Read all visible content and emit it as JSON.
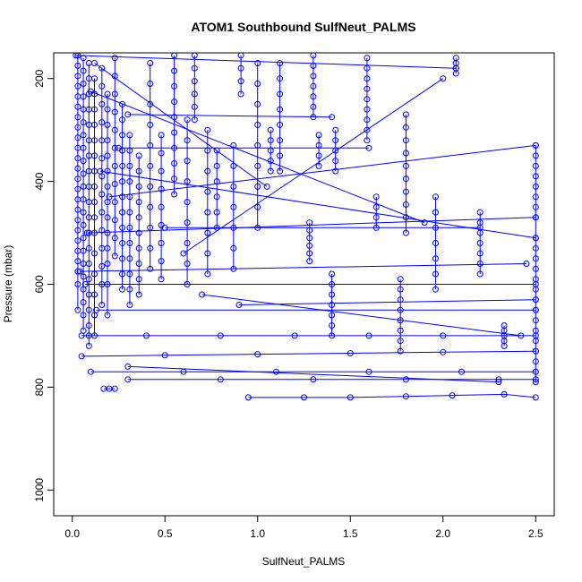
{
  "chart_data": {
    "type": "scatter",
    "title": "ATOM1 Southbound SulfNeut_PALMS",
    "xlabel": "SulfNeut_PALMS",
    "ylabel": "Pressure (mbar)",
    "xlim": [
      -0.1,
      2.6
    ],
    "ylim": [
      1050,
      150
    ],
    "y_inverted": true,
    "x_ticks": [
      0.0,
      0.5,
      1.0,
      1.5,
      2.0,
      2.5
    ],
    "x_tick_labels": [
      "0.0",
      "0.5",
      "1.0",
      "1.5",
      "2.0",
      "2.5"
    ],
    "y_ticks": [
      200,
      400,
      600,
      800,
      1000
    ],
    "y_tick_labels": [
      "200",
      "400",
      "600",
      "800",
      "1000"
    ],
    "color": "#0000ff",
    "marker": "open-circle",
    "connect_points": true,
    "legend": "none",
    "grid": false,
    "series": [
      {
        "x": [
          0.03,
          0.03,
          0.03,
          0.03,
          0.03,
          0.03,
          0.03,
          0.03,
          0.03,
          0.03,
          0.03,
          0.03,
          0.03,
          0.03,
          0.03,
          0.03,
          0.03,
          0.03,
          0.03,
          0.03,
          0.03,
          0.03,
          0.03,
          0.03
        ],
        "y": [
          155,
          175,
          195,
          215,
          235,
          255,
          275,
          295,
          315,
          335,
          355,
          375,
          395,
          415,
          435,
          455,
          475,
          495,
          515,
          535,
          555,
          575,
          600,
          650
        ]
      },
      {
        "x": [
          0.06,
          0.06,
          0.06,
          0.06,
          0.06,
          0.06,
          0.06,
          0.06,
          0.06,
          0.06,
          0.06,
          0.06,
          0.06,
          0.06,
          0.06,
          0.06,
          0.06,
          0.06,
          0.06,
          0.06,
          0.06,
          0.06
        ],
        "y": [
          160,
          185,
          210,
          235,
          260,
          285,
          310,
          335,
          360,
          385,
          410,
          435,
          460,
          485,
          510,
          535,
          560,
          585,
          610,
          635,
          660,
          690
        ]
      },
      {
        "x": [
          0.09,
          0.09,
          0.09,
          0.09,
          0.09,
          0.09,
          0.09,
          0.09,
          0.09,
          0.09,
          0.09,
          0.09,
          0.09,
          0.09,
          0.09,
          0.09,
          0.09,
          0.09,
          0.09,
          0.09
        ],
        "y": [
          170,
          200,
          230,
          260,
          290,
          320,
          350,
          380,
          410,
          440,
          470,
          500,
          530,
          560,
          590,
          620,
          650,
          680,
          700,
          720
        ]
      },
      {
        "x": [
          0.12,
          0.12,
          0.12,
          0.12,
          0.12,
          0.12,
          0.12,
          0.12,
          0.12,
          0.12,
          0.12,
          0.12,
          0.12,
          0.12,
          0.12,
          0.12
        ],
        "y": [
          200,
          230,
          260,
          290,
          320,
          350,
          380,
          410,
          440,
          470,
          500,
          540,
          580,
          620,
          660,
          700
        ]
      },
      {
        "x": [
          0.16,
          0.16,
          0.16,
          0.16,
          0.16,
          0.16,
          0.16,
          0.16,
          0.16,
          0.16,
          0.16,
          0.16,
          0.16,
          0.16
        ],
        "y": [
          180,
          215,
          250,
          285,
          320,
          355,
          390,
          425,
          460,
          495,
          530,
          565,
          600,
          640
        ]
      },
      {
        "x": [
          0.19,
          0.19,
          0.19,
          0.19,
          0.19,
          0.19,
          0.19,
          0.19,
          0.19,
          0.19,
          0.19,
          0.19,
          0.19,
          0.19
        ],
        "y": [
          230,
          260,
          290,
          320,
          350,
          380,
          410,
          440,
          470,
          500,
          530,
          560,
          600,
          660
        ]
      },
      {
        "x": [
          0.23,
          0.23,
          0.23,
          0.23,
          0.23,
          0.23,
          0.23,
          0.23,
          0.23,
          0.23,
          0.23,
          0.23
        ],
        "y": [
          160,
          195,
          230,
          265,
          300,
          335,
          370,
          405,
          440,
          475,
          510,
          545
        ]
      },
      {
        "x": [
          0.27,
          0.27,
          0.27,
          0.27,
          0.27,
          0.27,
          0.27,
          0.27,
          0.27,
          0.27,
          0.27,
          0.27,
          0.27
        ],
        "y": [
          250,
          280,
          310,
          340,
          370,
          400,
          430,
          460,
          490,
          520,
          550,
          580,
          610
        ]
      },
      {
        "x": [
          0.31,
          0.31,
          0.31,
          0.31,
          0.31,
          0.31,
          0.31,
          0.31,
          0.31,
          0.31,
          0.31,
          0.31
        ],
        "y": [
          310,
          340,
          370,
          400,
          430,
          460,
          490,
          520,
          550,
          580,
          610,
          640
        ]
      },
      {
        "x": [
          0.36,
          0.36,
          0.36,
          0.36,
          0.36,
          0.36,
          0.36,
          0.36,
          0.36,
          0.36
        ],
        "y": [
          350,
          380,
          410,
          440,
          470,
          500,
          530,
          560,
          590,
          620
        ]
      },
      {
        "x": [
          0.42,
          0.42,
          0.42,
          0.42,
          0.42,
          0.42,
          0.42,
          0.42,
          0.42,
          0.42,
          0.42
        ],
        "y": [
          170,
          210,
          250,
          290,
          330,
          370,
          410,
          450,
          490,
          530,
          570
        ]
      },
      {
        "x": [
          0.48,
          0.48,
          0.48,
          0.48,
          0.48,
          0.48,
          0.48,
          0.48,
          0.48
        ],
        "y": [
          310,
          345,
          380,
          415,
          450,
          485,
          520,
          555,
          590
        ]
      },
      {
        "x": [
          0.55,
          0.55,
          0.55,
          0.55,
          0.55,
          0.55,
          0.55,
          0.55,
          0.55,
          0.55
        ],
        "y": [
          155,
          185,
          215,
          245,
          275,
          305,
          335,
          365,
          395,
          425
        ]
      },
      {
        "x": [
          0.62,
          0.62,
          0.62,
          0.62,
          0.62,
          0.62,
          0.62,
          0.62,
          0.62
        ],
        "y": [
          280,
          320,
          360,
          400,
          440,
          480,
          520,
          560,
          600
        ]
      },
      {
        "x": [
          0.66,
          0.66,
          0.66,
          0.66,
          0.66,
          0.66
        ],
        "y": [
          155,
          180,
          205,
          230,
          255,
          280
        ]
      },
      {
        "x": [
          0.73,
          0.73,
          0.73,
          0.73,
          0.73,
          0.73,
          0.73,
          0.73
        ],
        "y": [
          300,
          340,
          380,
          420,
          460,
          500,
          540,
          580
        ]
      },
      {
        "x": [
          0.78,
          0.78,
          0.78,
          0.78,
          0.78,
          0.78
        ],
        "y": [
          340,
          370,
          400,
          430,
          460,
          490
        ]
      },
      {
        "x": [
          0.87,
          0.87,
          0.87,
          0.87,
          0.87,
          0.87,
          0.87
        ],
        "y": [
          330,
          370,
          410,
          450,
          490,
          530,
          570
        ]
      },
      {
        "x": [
          0.91,
          0.91,
          0.91,
          0.91
        ],
        "y": [
          155,
          180,
          205,
          230
        ]
      },
      {
        "x": [
          1.0,
          1.0,
          1.0,
          1.0,
          1.0,
          1.0,
          1.0,
          1.0,
          1.0
        ],
        "y": [
          170,
          210,
          250,
          290,
          330,
          370,
          410,
          450,
          490
        ]
      },
      {
        "x": [
          1.07,
          1.07,
          1.07,
          1.07,
          1.07
        ],
        "y": [
          300,
          320,
          340,
          360,
          380
        ]
      },
      {
        "x": [
          1.12,
          1.12,
          1.12,
          1.12,
          1.12,
          1.12,
          1.12,
          1.12
        ],
        "y": [
          170,
          200,
          230,
          260,
          290,
          320,
          350,
          380
        ]
      },
      {
        "x": [
          1.28,
          1.28,
          1.28,
          1.28,
          1.28,
          1.28
        ],
        "y": [
          480,
          495,
          510,
          525,
          540,
          555
        ]
      },
      {
        "x": [
          1.3,
          1.3,
          1.3,
          1.3,
          1.3,
          1.3,
          1.3
        ],
        "y": [
          155,
          175,
          195,
          215,
          235,
          255,
          275
        ]
      },
      {
        "x": [
          1.33,
          1.33,
          1.33,
          1.33
        ],
        "y": [
          310,
          330,
          350,
          370
        ]
      },
      {
        "x": [
          1.4,
          1.4,
          1.4,
          1.4,
          1.4,
          1.4,
          1.4
        ],
        "y": [
          580,
          600,
          620,
          640,
          660,
          680,
          700
        ]
      },
      {
        "x": [
          1.42,
          1.42,
          1.42,
          1.42,
          1.42
        ],
        "y": [
          300,
          320,
          340,
          360,
          380
        ]
      },
      {
        "x": [
          1.59,
          1.59,
          1.59,
          1.59,
          1.59,
          1.59,
          1.59,
          1.59,
          1.59
        ],
        "y": [
          160,
          180,
          200,
          220,
          240,
          260,
          280,
          300,
          320
        ]
      },
      {
        "x": [
          1.64,
          1.64,
          1.64,
          1.64
        ],
        "y": [
          430,
          450,
          470,
          490
        ]
      },
      {
        "x": [
          1.8,
          1.8,
          1.8,
          1.8,
          1.8,
          1.8,
          1.8,
          1.8,
          1.8,
          1.8
        ],
        "y": [
          270,
          295,
          320,
          345,
          370,
          395,
          420,
          445,
          470,
          500
        ]
      },
      {
        "x": [
          1.77,
          1.77,
          1.77,
          1.77,
          1.77,
          1.77,
          1.77,
          1.77
        ],
        "y": [
          590,
          610,
          630,
          650,
          670,
          690,
          710,
          730
        ]
      },
      {
        "x": [
          1.96,
          1.96,
          1.96,
          1.96,
          1.96,
          1.96,
          1.96
        ],
        "y": [
          430,
          460,
          490,
          520,
          550,
          580,
          610
        ]
      },
      {
        "x": [
          2.07,
          2.07,
          2.07,
          2.07
        ],
        "y": [
          160,
          170,
          180,
          190
        ]
      },
      {
        "x": [
          2.2,
          2.2,
          2.2,
          2.2,
          2.2,
          2.2,
          2.2
        ],
        "y": [
          460,
          480,
          500,
          520,
          540,
          560,
          580
        ]
      },
      {
        "x": [
          2.33,
          2.33,
          2.33,
          2.33,
          2.33
        ],
        "y": [
          680,
          690,
          700,
          710,
          720
        ]
      },
      {
        "x": [
          2.5,
          2.5,
          2.5,
          2.5,
          2.5,
          2.5,
          2.5,
          2.5,
          2.5,
          2.5,
          2.5,
          2.5,
          2.5,
          2.5,
          2.5,
          2.5,
          2.5,
          2.5,
          2.5,
          2.5,
          2.5,
          2.5,
          2.5
        ],
        "y": [
          330,
          350,
          370,
          390,
          410,
          430,
          450,
          470,
          510,
          530,
          550,
          570,
          590,
          610,
          630,
          650,
          670,
          690,
          710,
          730,
          750,
          770,
          790
        ]
      },
      {
        "x": [
          0.05,
          0.4,
          0.8,
          1.2,
          1.6,
          2.0,
          2.5
        ],
        "y": [
          700,
          700,
          700,
          700,
          700,
          700,
          700
        ]
      },
      {
        "x": [
          0.05,
          0.5,
          1.0,
          1.5,
          2.0,
          2.5
        ],
        "y": [
          740,
          738,
          736,
          734,
          732,
          730
        ]
      },
      {
        "x": [
          0.1,
          0.6,
          1.1,
          1.6,
          2.1,
          2.5
        ],
        "y": [
          770,
          770,
          770,
          770,
          770,
          770
        ]
      },
      {
        "x": [
          0.3,
          0.8,
          1.3,
          1.8,
          2.3,
          2.5
        ],
        "y": [
          785,
          785,
          785,
          785,
          785,
          785
        ]
      },
      {
        "x": [
          0.95,
          1.25,
          1.5,
          1.8,
          2.05,
          2.33,
          2.5
        ],
        "y": [
          820,
          820,
          820,
          818,
          816,
          814,
          820
        ]
      },
      {
        "x": [
          0.17,
          0.2,
          0.23
        ],
        "y": [
          803,
          803,
          803
        ]
      },
      {
        "x": [
          0.07,
          2.5
        ],
        "y": [
          600,
          600
        ]
      },
      {
        "x": [
          0.13,
          2.5
        ],
        "y": [
          650,
          650
        ]
      },
      {
        "x": [
          0.08,
          2.5
        ],
        "y": [
          500,
          470
        ]
      },
      {
        "x": [
          0.2,
          2.5
        ],
        "y": [
          430,
          330
        ]
      },
      {
        "x": [
          0.15,
          2.5
        ],
        "y": [
          380,
          510
        ]
      },
      {
        "x": [
          0.3,
          1.4
        ],
        "y": [
          270,
          275
        ]
      },
      {
        "x": [
          0.02,
          2.07
        ],
        "y": [
          155,
          180
        ]
      },
      {
        "x": [
          0.6,
          2.0
        ],
        "y": [
          540,
          200
        ]
      },
      {
        "x": [
          0.1,
          1.9
        ],
        "y": [
          225,
          480
        ]
      },
      {
        "x": [
          0.25,
          1.6
        ],
        "y": [
          335,
          335
        ]
      },
      {
        "x": [
          0.5,
          2.2
        ],
        "y": [
          490,
          490
        ]
      },
      {
        "x": [
          0.7,
          2.42
        ],
        "y": [
          620,
          700
        ]
      },
      {
        "x": [
          0.04,
          2.45
        ],
        "y": [
          575,
          560
        ]
      },
      {
        "x": [
          0.9,
          2.5
        ],
        "y": [
          640,
          630
        ]
      },
      {
        "x": [
          0.12,
          1.05
        ],
        "y": [
          170,
          410
        ]
      },
      {
        "x": [
          0.3,
          2.3
        ],
        "y": [
          760,
          790
        ]
      }
    ]
  }
}
